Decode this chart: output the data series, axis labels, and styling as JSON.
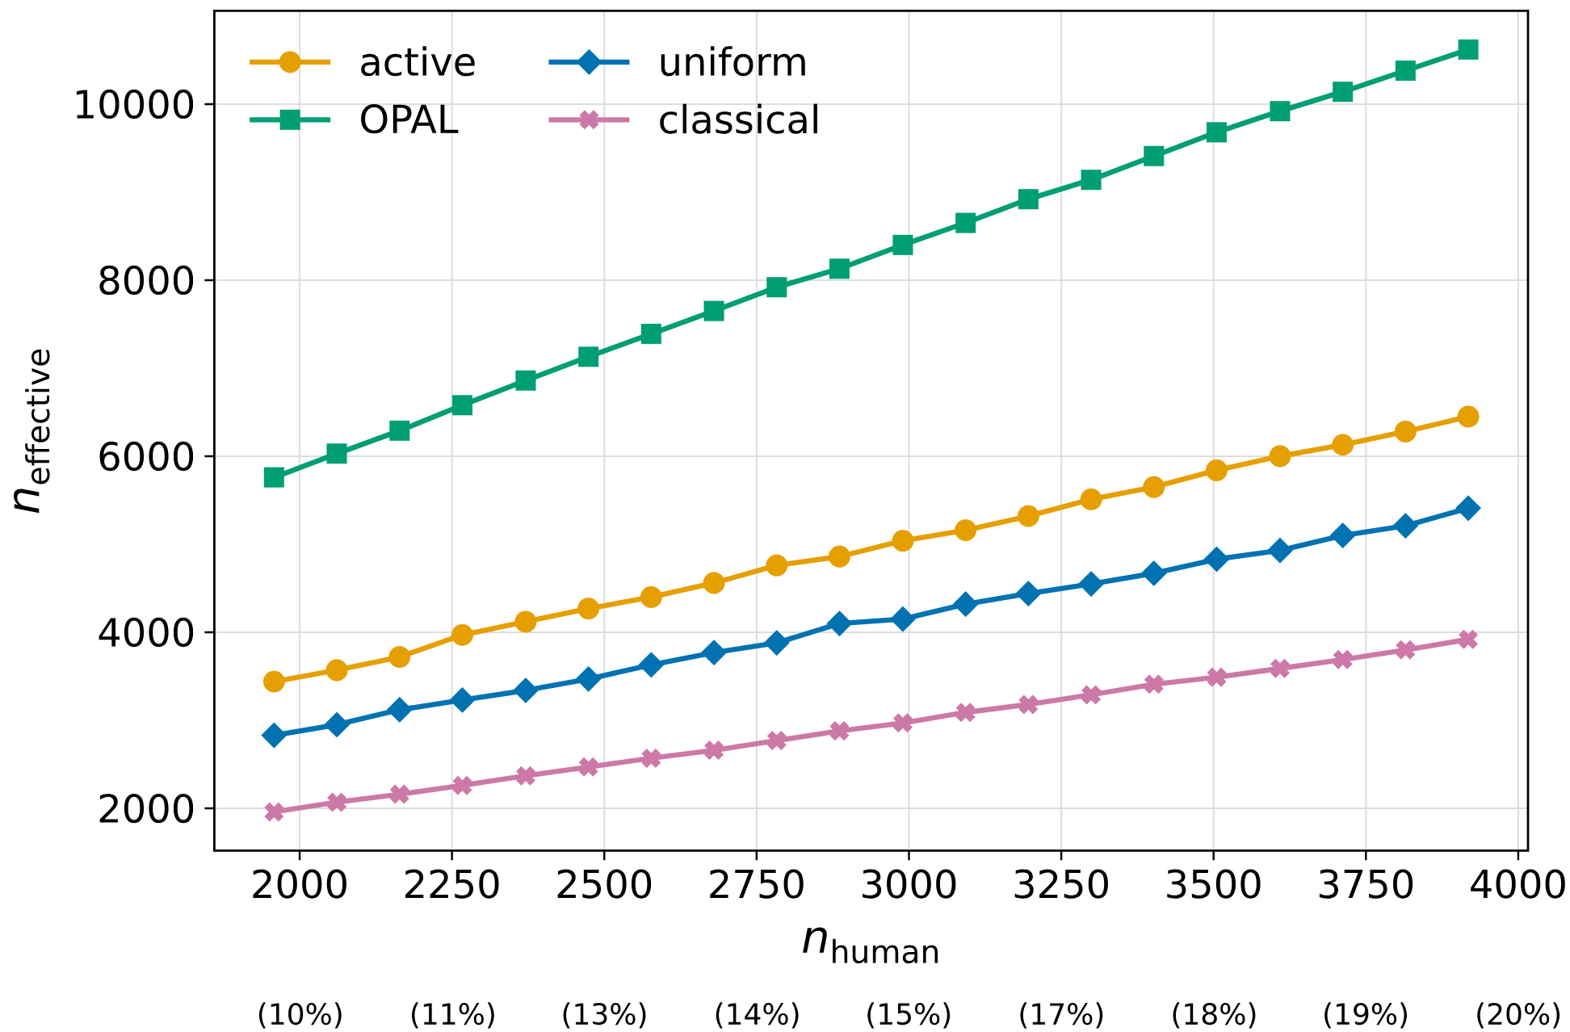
{
  "chart_data": {
    "type": "line",
    "xlabel": "\\mathit{n}_{\\mathrm{human}}",
    "ylabel": "\\mathit{n}_{\\mathrm{effective}}",
    "x": [
      1958,
      2061,
      2164,
      2267,
      2371,
      2474,
      2577,
      2680,
      2783,
      2886,
      2990,
      3093,
      3196,
      3299,
      3402,
      3505,
      3609,
      3712,
      3815,
      3918
    ],
    "series": [
      {
        "name": "active",
        "color": "#e69f00",
        "marker": "circle",
        "values": [
          3440,
          3570,
          3720,
          3970,
          4120,
          4270,
          4400,
          4560,
          4760,
          4860,
          5040,
          5160,
          5320,
          5510,
          5650,
          5840,
          6000,
          6130,
          6280,
          6450
        ]
      },
      {
        "name": "OPAL",
        "color": "#009e73",
        "marker": "square",
        "values": [
          5760,
          6030,
          6290,
          6580,
          6860,
          7130,
          7390,
          7650,
          7920,
          8130,
          8400,
          8650,
          8920,
          9140,
          9410,
          9680,
          9920,
          10140,
          10380,
          10620
        ]
      },
      {
        "name": "uniform",
        "color": "#0072b2",
        "marker": "diamond",
        "values": [
          2830,
          2950,
          3120,
          3230,
          3340,
          3470,
          3630,
          3770,
          3880,
          4100,
          4150,
          4320,
          4440,
          4550,
          4670,
          4830,
          4930,
          5100,
          5210,
          5410
        ]
      },
      {
        "name": "classical",
        "color": "#cc79a7",
        "marker": "cross",
        "values": [
          1960,
          2070,
          2160,
          2260,
          2370,
          2470,
          2570,
          2660,
          2770,
          2880,
          2970,
          3090,
          3180,
          3290,
          3410,
          3490,
          3590,
          3690,
          3800,
          3920
        ]
      }
    ],
    "xlim": [
      1860,
      4016
    ],
    "ylim": [
      1520,
      11060
    ],
    "xticks": [
      2000,
      2250,
      2500,
      2750,
      3000,
      3250,
      3500,
      3750,
      4000
    ],
    "yticks": [
      2000,
      4000,
      6000,
      8000,
      10000
    ],
    "x2lim": [
      9.49,
      20.5
    ],
    "x2ticks": [
      {
        "value": 10.21,
        "label": "(10%)"
      },
      {
        "value": 11.49,
        "label": "(11%)"
      },
      {
        "value": 12.76,
        "label": "(13%)"
      },
      {
        "value": 14.04,
        "label": "(14%)"
      },
      {
        "value": 15.31,
        "label": "(15%)"
      },
      {
        "value": 16.59,
        "label": "(17%)"
      },
      {
        "value": 17.87,
        "label": "(18%)"
      },
      {
        "value": 19.14,
        "label": "(19%)"
      },
      {
        "value": 20.42,
        "label": "(20%)"
      }
    ],
    "grid": true,
    "legend": "top left"
  }
}
